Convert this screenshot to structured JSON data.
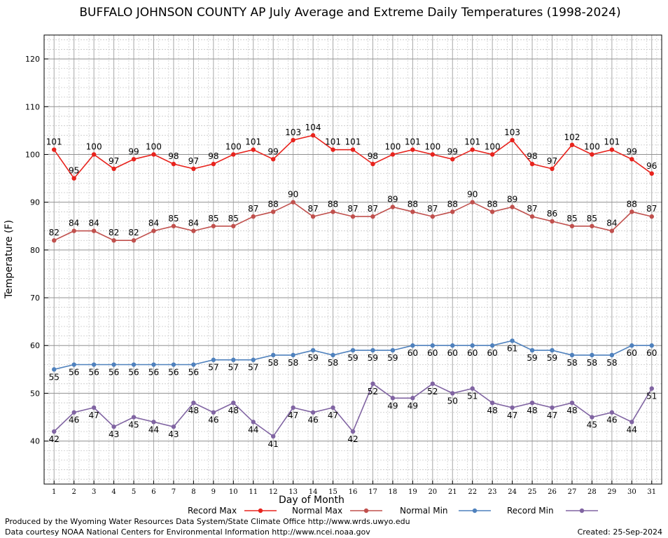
{
  "chart_data": {
    "type": "line",
    "title": "BUFFALO JOHNSON COUNTY AP July Average and Extreme Daily Temperatures (1998-2024)",
    "xlabel": "Day of Month",
    "ylabel": "Temperature (F)",
    "xlim": [
      0.5,
      31.5
    ],
    "ylim": [
      31,
      125
    ],
    "y_ticks": [
      40,
      50,
      60,
      70,
      80,
      90,
      100,
      110,
      120
    ],
    "grid": true,
    "legend_position": "bottom",
    "x": [
      1,
      2,
      3,
      4,
      5,
      6,
      7,
      8,
      9,
      10,
      11,
      12,
      13,
      14,
      15,
      16,
      17,
      18,
      19,
      20,
      21,
      22,
      23,
      24,
      25,
      26,
      27,
      28,
      29,
      30,
      31
    ],
    "series": [
      {
        "name": "Record Max",
        "color": "#e8231d",
        "label_position": "above",
        "values": [
          101,
          95,
          100,
          97,
          99,
          100,
          98,
          97,
          98,
          100,
          101,
          99,
          103,
          104,
          101,
          101,
          98,
          100,
          101,
          100,
          99,
          101,
          100,
          103,
          98,
          97,
          102,
          100,
          101,
          99,
          96
        ]
      },
      {
        "name": "Normal Max",
        "color": "#c0504d",
        "label_position": "above",
        "values": [
          82,
          84,
          84,
          82,
          82,
          84,
          85,
          84,
          85,
          85,
          87,
          88,
          90,
          87,
          88,
          87,
          87,
          89,
          88,
          87,
          88,
          90,
          88,
          89,
          87,
          86,
          85,
          85,
          84,
          88,
          87
        ]
      },
      {
        "name": "Normal Min",
        "color": "#4f81bd",
        "label_position": "below",
        "values": [
          55,
          56,
          56,
          56,
          56,
          56,
          56,
          56,
          57,
          57,
          57,
          58,
          58,
          59,
          58,
          59,
          59,
          59,
          60,
          60,
          60,
          60,
          60,
          61,
          59,
          59,
          58,
          58,
          58,
          60,
          60
        ]
      },
      {
        "name": "Record Min",
        "color": "#8064a2",
        "label_position": "below",
        "values": [
          42,
          46,
          47,
          43,
          45,
          44,
          43,
          48,
          46,
          48,
          44,
          41,
          47,
          46,
          47,
          42,
          52,
          49,
          49,
          52,
          50,
          51,
          48,
          47,
          48,
          47,
          48,
          45,
          46,
          44,
          51
        ]
      }
    ]
  },
  "footer": {
    "produced_by": "Produced by the Wyoming Water Resources Data System/State Climate Office http://www.wrds.uwyo.edu",
    "courtesy": "Data courtesy NOAA National Centers for Environmental Information http://www.ncei.noaa.gov",
    "created": "Created:  25-Sep-2024"
  }
}
